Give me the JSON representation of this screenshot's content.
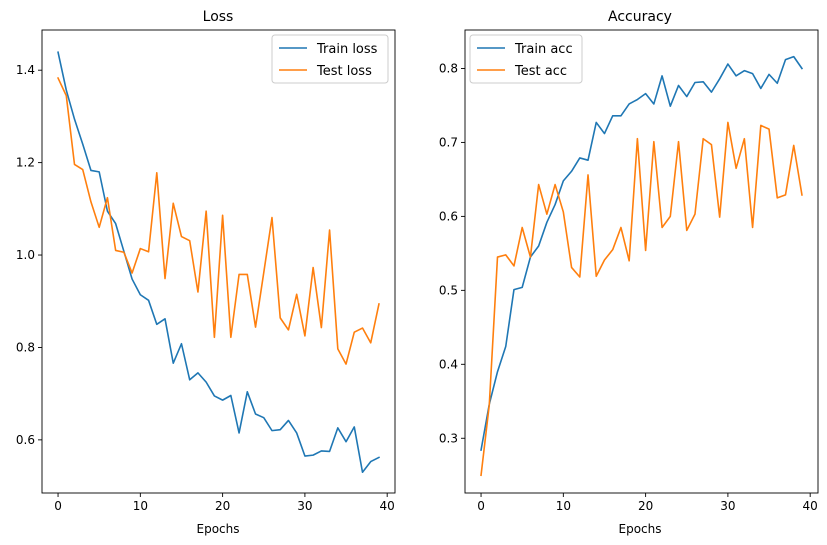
{
  "figure": {
    "background": "#ffffff"
  },
  "colors": {
    "train": "#1f77b4",
    "test": "#ff7f0e",
    "axis": "#000000",
    "legend_border": "#cccccc"
  },
  "chart_data": [
    {
      "type": "line",
      "title": "Loss",
      "xlabel": "Epochs",
      "ylabel": "",
      "xlim": [
        -1.95,
        40.95
      ],
      "ylim": [
        0.485,
        1.487
      ],
      "xticks": [
        0,
        10,
        20,
        30,
        40
      ],
      "xtick_labels": [
        "0",
        "10",
        "20",
        "30",
        "40"
      ],
      "yticks": [
        0.6,
        0.8,
        1.0,
        1.2,
        1.4
      ],
      "ytick_labels": [
        "0.6",
        "0.8",
        "1.0",
        "1.2",
        "1.4"
      ],
      "grid": false,
      "legend": "top-right",
      "x": [
        0,
        1,
        2,
        3,
        4,
        5,
        6,
        7,
        8,
        9,
        10,
        11,
        12,
        13,
        14,
        15,
        16,
        17,
        18,
        19,
        20,
        21,
        22,
        23,
        24,
        25,
        26,
        27,
        28,
        29,
        30,
        31,
        32,
        33,
        34,
        35,
        36,
        37,
        38,
        39
      ],
      "series": [
        {
          "name": "Train loss",
          "color": "#1f77b4",
          "values": [
            1.439,
            1.357,
            1.294,
            1.24,
            1.183,
            1.18,
            1.095,
            1.068,
            1.008,
            0.948,
            0.914,
            0.902,
            0.85,
            0.862,
            0.766,
            0.808,
            0.73,
            0.745,
            0.725,
            0.695,
            0.686,
            0.696,
            0.615,
            0.704,
            0.656,
            0.648,
            0.62,
            0.622,
            0.642,
            0.615,
            0.565,
            0.567,
            0.576,
            0.575,
            0.626,
            0.596,
            0.628,
            0.53,
            0.553,
            0.562
          ]
        },
        {
          "name": "Test loss",
          "color": "#ff7f0e",
          "values": [
            1.383,
            1.345,
            1.196,
            1.185,
            1.115,
            1.06,
            1.124,
            1.01,
            1.006,
            0.961,
            1.014,
            1.007,
            1.178,
            0.949,
            1.112,
            1.04,
            1.031,
            0.92,
            1.095,
            0.822,
            1.086,
            0.822,
            0.958,
            0.958,
            0.844,
            0.962,
            1.081,
            0.864,
            0.838,
            0.915,
            0.825,
            0.973,
            0.843,
            1.054,
            0.797,
            0.764,
            0.833,
            0.842,
            0.81,
            0.894
          ]
        }
      ]
    },
    {
      "type": "line",
      "title": "Accuracy",
      "xlabel": "Epochs",
      "ylabel": "",
      "xlim": [
        -1.95,
        40.95
      ],
      "ylim": [
        0.226,
        0.852
      ],
      "xticks": [
        0,
        10,
        20,
        30,
        40
      ],
      "xtick_labels": [
        "0",
        "10",
        "20",
        "30",
        "40"
      ],
      "yticks": [
        0.3,
        0.4,
        0.5,
        0.6,
        0.7,
        0.8
      ],
      "ytick_labels": [
        "0.3",
        "0.4",
        "0.5",
        "0.6",
        "0.7",
        "0.8"
      ],
      "grid": false,
      "legend": "top-left",
      "x": [
        0,
        1,
        2,
        3,
        4,
        5,
        6,
        7,
        8,
        9,
        10,
        11,
        12,
        13,
        14,
        15,
        16,
        17,
        18,
        19,
        20,
        21,
        22,
        23,
        24,
        25,
        26,
        27,
        28,
        29,
        30,
        31,
        32,
        33,
        34,
        35,
        36,
        37,
        38,
        39
      ],
      "series": [
        {
          "name": "Train acc",
          "color": "#1f77b4",
          "values": [
            0.284,
            0.346,
            0.39,
            0.424,
            0.501,
            0.504,
            0.545,
            0.56,
            0.592,
            0.616,
            0.648,
            0.661,
            0.679,
            0.676,
            0.727,
            0.712,
            0.736,
            0.736,
            0.752,
            0.758,
            0.766,
            0.752,
            0.79,
            0.749,
            0.777,
            0.762,
            0.781,
            0.782,
            0.768,
            0.786,
            0.806,
            0.79,
            0.797,
            0.793,
            0.773,
            0.792,
            0.78,
            0.812,
            0.816,
            0.8
          ]
        },
        {
          "name": "Test acc",
          "color": "#ff7f0e",
          "values": [
            0.25,
            0.345,
            0.545,
            0.548,
            0.533,
            0.585,
            0.545,
            0.643,
            0.603,
            0.643,
            0.606,
            0.531,
            0.518,
            0.656,
            0.519,
            0.541,
            0.555,
            0.585,
            0.54,
            0.705,
            0.554,
            0.701,
            0.585,
            0.6,
            0.701,
            0.581,
            0.603,
            0.705,
            0.697,
            0.599,
            0.727,
            0.665,
            0.705,
            0.585,
            0.723,
            0.718,
            0.625,
            0.629,
            0.696,
            0.629
          ]
        }
      ]
    }
  ]
}
